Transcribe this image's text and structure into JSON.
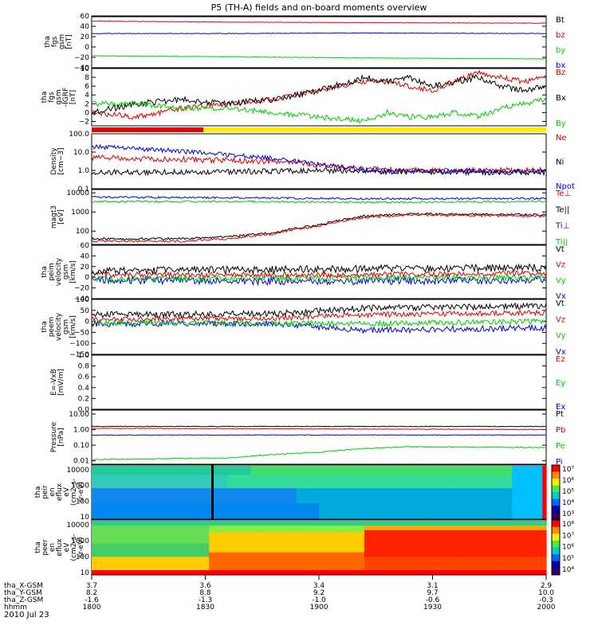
{
  "title": "P5 (TH-A) fields and on-board moments overview",
  "date_label": "2010 Jul 23",
  "colors": {
    "black": "#000000",
    "red": "#e00000",
    "green": "#00cc00",
    "blue": "#0000e0",
    "yellow": "#ffee00"
  },
  "chart_data": {
    "type": "line",
    "x_label": "hhmm",
    "x_range": [
      "1800",
      "2000"
    ],
    "orbit_table": {
      "row_labels": [
        "tha_X-GSM",
        "tha_Y-GSM",
        "tha_Z-GSM",
        "hhmm"
      ],
      "columns": [
        {
          "values": [
            "3.7",
            "8.2",
            "-1.6",
            "1800"
          ]
        },
        {
          "values": [
            "3.6",
            "8.8",
            "-1.3",
            "1830"
          ]
        },
        {
          "values": [
            "3.4",
            "9.2",
            "-1.0",
            "1900"
          ]
        },
        {
          "values": [
            "3.1",
            "9.7",
            "-0.6",
            "1930"
          ]
        },
        {
          "values": [
            "2.9",
            "10.0",
            "-0.3",
            "2000"
          ]
        }
      ]
    },
    "panels": [
      {
        "ylabel": [
          "tha",
          "fgs",
          "gsm",
          "[nT]"
        ],
        "ylim": [
          -40,
          60
        ],
        "scale": "linear",
        "ticks": [
          "60",
          "40",
          "20",
          "0",
          "−20",
          "−40"
        ],
        "tick_values": [
          60,
          40,
          20,
          0,
          -20,
          -40
        ],
        "legend": [
          {
            "name": "Bt",
            "color": "black"
          },
          {
            "name": "bz",
            "color": "red"
          },
          {
            "name": "by",
            "color": "green"
          },
          {
            "name": "bx",
            "color": "blue"
          }
        ],
        "series": [
          {
            "name": "Bt",
            "color": "black",
            "x": [
              0,
              0.3,
              0.6,
              1
            ],
            "y": [
              60,
              59,
              60,
              60
            ],
            "noise": 0.6
          },
          {
            "name": "bz",
            "color": "red",
            "x": [
              0,
              0.3,
              0.6,
              1
            ],
            "y": [
              50,
              48,
              47,
              46
            ],
            "noise": 0.5
          },
          {
            "name": "by",
            "color": "green",
            "x": [
              0,
              0.3,
              0.6,
              1
            ],
            "y": [
              -17,
              -19,
              -21,
              -23
            ],
            "noise": 0.5
          },
          {
            "name": "bx",
            "color": "blue",
            "x": [
              0,
              0.3,
              0.6,
              1
            ],
            "y": [
              26,
              26,
              27,
              26
            ],
            "noise": 0.5
          }
        ]
      },
      {
        "ylabel": [
          "tha",
          "fgs",
          "gsm",
          "-IGRF",
          "[nT]"
        ],
        "ylim": [
          -3,
          10
        ],
        "scale": "linear",
        "ticks": [
          "10",
          "8",
          "6",
          "4",
          "2",
          "0",
          "−2"
        ],
        "tick_values": [
          10,
          8,
          6,
          4,
          2,
          0,
          -2
        ],
        "legend": [
          {
            "name": "Bz",
            "color": "red"
          },
          {
            "name": "Bx",
            "color": "black"
          },
          {
            "name": "By",
            "color": "green"
          }
        ],
        "series": [
          {
            "name": "Bz",
            "color": "red",
            "x": [
              0,
              0.1,
              0.2,
              0.3,
              0.4,
              0.5,
              0.6,
              0.65,
              0.7,
              0.75,
              0.8,
              0.85,
              0.9,
              0.95,
              1
            ],
            "y": [
              0,
              -1,
              1,
              2,
              3,
              5,
              7,
              7,
              6,
              5,
              7,
              9,
              8,
              7,
              8
            ],
            "noise": 0.6
          },
          {
            "name": "Bx",
            "color": "black",
            "x": [
              0,
              0.1,
              0.2,
              0.3,
              0.4,
              0.5,
              0.6,
              0.65,
              0.7,
              0.75,
              0.8,
              0.85,
              0.9,
              0.95,
              1
            ],
            "y": [
              0,
              2,
              3,
              2,
              3,
              5,
              8,
              7,
              8,
              6,
              7,
              8,
              6,
              5,
              6
            ],
            "noise": 0.7
          },
          {
            "name": "By",
            "color": "green",
            "x": [
              0,
              0.1,
              0.2,
              0.3,
              0.4,
              0.5,
              0.6,
              0.65,
              0.7,
              0.75,
              0.8,
              0.85,
              0.9,
              0.95,
              1
            ],
            "y": [
              2,
              2,
              1,
              1,
              0,
              -1,
              -2,
              0,
              -1,
              -1,
              0,
              -1,
              1,
              2,
              3
            ],
            "noise": 0.6
          }
        ]
      },
      {
        "ylabel": [
          "Density",
          "[cm−3]"
        ],
        "ylim": [
          0.1,
          100
        ],
        "scale": "log",
        "ticks": [
          "100.0",
          "10.0",
          "1.0",
          "0.1"
        ],
        "tick_values": [
          100,
          10,
          1,
          0.1
        ],
        "legend": [
          {
            "name": "Ne",
            "color": "red"
          },
          {
            "name": "Ni",
            "color": "black"
          },
          {
            "name": "Npot",
            "color": "blue"
          }
        ],
        "series": [
          {
            "name": "Ne",
            "color": "red",
            "x": [
              0,
              0.2,
              0.4,
              0.5,
              0.6,
              0.7,
              1
            ],
            "y": [
              5,
              4,
              3,
              2,
              1.2,
              1,
              1
            ],
            "noise": 0.15
          },
          {
            "name": "Ni",
            "color": "black",
            "x": [
              0,
              0.2,
              0.4,
              0.5,
              0.6,
              0.7,
              1
            ],
            "y": [
              0.8,
              0.8,
              0.9,
              1,
              0.9,
              0.8,
              0.8
            ],
            "noise": 0.15
          },
          {
            "name": "Npot",
            "color": "blue",
            "x": [
              0,
              0.1,
              0.3,
              0.5,
              0.6,
              0.7,
              1
            ],
            "y": [
              20,
              15,
              7,
              2,
              1,
              0.9,
              0.9
            ],
            "noise": 0.12
          }
        ]
      },
      {
        "ylabel": [
          "magt3",
          "[eV]"
        ],
        "ylim": [
          20,
          15000
        ],
        "scale": "log",
        "ticks": [
          "10000",
          "1000",
          "100"
        ],
        "tick_values": [
          10000,
          1000,
          100
        ],
        "legend": [
          {
            "name": "Te⊥",
            "color": "red"
          },
          {
            "name": "Te||",
            "color": "black"
          },
          {
            "name": "Ti⊥",
            "color": "blue"
          },
          {
            "name": "Ti||",
            "color": "green"
          }
        ],
        "series": [
          {
            "name": "Ti⊥",
            "color": "blue",
            "x": [
              0,
              0.3,
              0.6,
              1
            ],
            "y": [
              6000,
              5500,
              5000,
              5000
            ],
            "noise": 0.05
          },
          {
            "name": "Ti||",
            "color": "green",
            "x": [
              0,
              0.3,
              0.6,
              1
            ],
            "y": [
              3500,
              3500,
              3200,
              3500
            ],
            "noise": 0.05
          },
          {
            "name": "Te||",
            "color": "black",
            "x": [
              0,
              0.2,
              0.3,
              0.4,
              0.5,
              0.6,
              0.7,
              1
            ],
            "y": [
              40,
              40,
              50,
              80,
              200,
              600,
              800,
              700
            ],
            "noise": 0.06
          },
          {
            "name": "Te⊥",
            "color": "red",
            "x": [
              0,
              0.2,
              0.3,
              0.4,
              0.5,
              0.6,
              0.7,
              1
            ],
            "y": [
              30,
              30,
              40,
              70,
              180,
              500,
              700,
              600
            ],
            "noise": 0.06
          }
        ]
      },
      {
        "ylabel": [
          "tha",
          "peim",
          "velocity",
          "gsm",
          "[km/s]"
        ],
        "ylim": [
          -40,
          60
        ],
        "scale": "linear",
        "ticks": [
          "60",
          "40",
          "20",
          "0",
          "−20",
          "−40"
        ],
        "tick_values": [
          60,
          40,
          20,
          0,
          -20,
          -40
        ],
        "legend": [
          {
            "name": "Vt",
            "color": "black"
          },
          {
            "name": "Vz",
            "color": "red"
          },
          {
            "name": "Vy",
            "color": "green"
          },
          {
            "name": "Vx",
            "color": "blue"
          }
        ],
        "series": [
          {
            "name": "Vx",
            "color": "blue",
            "x": [
              0,
              0.5,
              1
            ],
            "y": [
              -5,
              -8,
              -5
            ],
            "noise": 7
          },
          {
            "name": "Vy",
            "color": "green",
            "x": [
              0,
              0.5,
              1
            ],
            "y": [
              -3,
              -2,
              0
            ],
            "noise": 6
          },
          {
            "name": "Vz",
            "color": "red",
            "x": [
              0,
              0.5,
              1
            ],
            "y": [
              5,
              4,
              8
            ],
            "noise": 5
          },
          {
            "name": "Vt",
            "color": "black",
            "x": [
              0,
              0.5,
              1
            ],
            "y": [
              12,
              15,
              18
            ],
            "noise": 7
          }
        ]
      },
      {
        "ylabel": [
          "tha",
          "peem",
          "velocity",
          "gsm",
          "[km/s]"
        ],
        "ylim": [
          -150,
          100
        ],
        "scale": "linear",
        "ticks": [
          "100",
          "50",
          "0",
          "−50",
          "−100",
          "−150"
        ],
        "tick_values": [
          100,
          50,
          0,
          -50,
          -100,
          -150
        ],
        "legend": [
          {
            "name": "Vt",
            "color": "black"
          },
          {
            "name": "Vz",
            "color": "red"
          },
          {
            "name": "Vy",
            "color": "green"
          },
          {
            "name": "Vx",
            "color": "blue"
          }
        ],
        "series": [
          {
            "name": "Vx",
            "color": "blue",
            "x": [
              0,
              0.4,
              0.6,
              1
            ],
            "y": [
              -10,
              -10,
              -40,
              -30
            ],
            "noise": 14
          },
          {
            "name": "Vy",
            "color": "green",
            "x": [
              0,
              0.4,
              0.6,
              1
            ],
            "y": [
              -5,
              -10,
              -10,
              0
            ],
            "noise": 12
          },
          {
            "name": "Vz",
            "color": "red",
            "x": [
              0,
              0.4,
              0.6,
              1
            ],
            "y": [
              10,
              15,
              30,
              40
            ],
            "noise": 12
          },
          {
            "name": "Vt",
            "color": "black",
            "x": [
              0,
              0.4,
              0.6,
              1
            ],
            "y": [
              30,
              35,
              60,
              70
            ],
            "noise": 14
          }
        ]
      },
      {
        "ylabel": [
          "E=-VxB",
          "[mV/m]"
        ],
        "ylim": [
          0,
          1
        ],
        "scale": "linear",
        "ticks": [
          "1.0",
          "0.8",
          "0.6",
          "0.4",
          "0.2",
          "0.0"
        ],
        "tick_values": [
          1,
          0.8,
          0.6,
          0.4,
          0.2,
          0
        ],
        "legend": [
          {
            "name": "Ez",
            "color": "red"
          },
          {
            "name": "Ey",
            "color": "green"
          },
          {
            "name": "Ex",
            "color": "blue"
          }
        ],
        "series": []
      },
      {
        "ylabel": [
          "Pressure",
          "[nPa]"
        ],
        "ylim": [
          0.006,
          18
        ],
        "scale": "log",
        "ticks": [
          "10.00",
          "1.00",
          "0.10",
          "0.01"
        ],
        "tick_values": [
          10,
          1,
          0.1,
          0.01
        ],
        "legend": [
          {
            "name": "Pt",
            "color": "black"
          },
          {
            "name": "Pb",
            "color": "red"
          },
          {
            "name": "Pe",
            "color": "green"
          },
          {
            "name": "Pi",
            "color": "blue"
          }
        ],
        "series": [
          {
            "name": "Pt",
            "color": "black",
            "x": [
              0,
              0.5,
              1
            ],
            "y": [
              1.6,
              1.6,
              1.6
            ],
            "noise": 0.02
          },
          {
            "name": "Pb",
            "color": "red",
            "x": [
              0,
              0.5,
              1
            ],
            "y": [
              1.2,
              1.1,
              1.0
            ],
            "noise": 0.02
          },
          {
            "name": "Pi",
            "color": "blue",
            "x": [
              0,
              0.5,
              1
            ],
            "y": [
              0.45,
              0.45,
              0.45
            ],
            "noise": 0.02
          },
          {
            "name": "Pe",
            "color": "green",
            "x": [
              0,
              0.3,
              0.5,
              0.6,
              0.7,
              1
            ],
            "y": [
              0.012,
              0.015,
              0.035,
              0.06,
              0.08,
              0.07
            ],
            "noise": 0.03
          }
        ]
      },
      {
        "type": "heatmap",
        "ylabel": [
          "tha",
          "peir",
          "en",
          "eflux",
          "eV",
          "(cm2-s-",
          "sr-eV)"
        ],
        "ylim": [
          7,
          20000
        ],
        "scale": "log",
        "ticks": [
          "10000",
          "1000",
          "100",
          "10"
        ],
        "tick_values": [
          10000,
          1000,
          100,
          10
        ],
        "colorbar_ticks": [
          "10⁷",
          "10⁶",
          "10⁵",
          "10⁴",
          "10³"
        ],
        "cells_per_row": 24
      },
      {
        "type": "heatmap",
        "ylabel": [
          "tha",
          "peer",
          "en",
          "eflux",
          "eV",
          "(cm2-s-",
          "sr-eV)"
        ],
        "ylim": [
          7,
          20000
        ],
        "scale": "log",
        "ticks": [
          "10000",
          "1000",
          "100",
          "10"
        ],
        "tick_values": [
          10000,
          1000,
          100,
          10
        ],
        "colorbar_ticks": [
          "10⁸",
          "10⁷",
          "10⁶",
          "10⁵",
          "10⁴"
        ],
        "cells_per_row": 24
      }
    ]
  }
}
